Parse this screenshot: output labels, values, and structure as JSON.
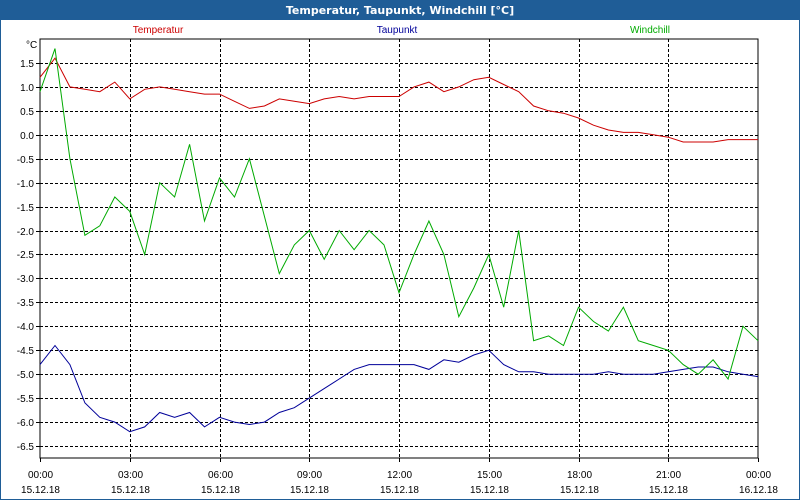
{
  "window": {
    "title": "Temperatur, Taupunkt, Windchill [°C]"
  },
  "chart_data": {
    "type": "line",
    "title": "Temperatur, Taupunkt, Windchill [°C]",
    "ylabel": "°C",
    "xlabel": "",
    "ylim": [
      -6.75,
      2.0
    ],
    "xlim": [
      0,
      24
    ],
    "grid": true,
    "legend": "top",
    "y_ticks": [
      "1.5",
      "1.0",
      "0.5",
      "0.0",
      "-0.5",
      "-1.0",
      "-1.5",
      "-2.0",
      "-2.5",
      "-3.0",
      "-3.5",
      "-4.0",
      "-4.5",
      "-5.0",
      "-5.5",
      "-6.0",
      "-6.5"
    ],
    "x_ticks": [
      {
        "time": "00:00",
        "date": "15.12.18"
      },
      {
        "time": "03:00",
        "date": "15.12.18"
      },
      {
        "time": "06:00",
        "date": "15.12.18"
      },
      {
        "time": "09:00",
        "date": "15.12.18"
      },
      {
        "time": "12:00",
        "date": "15.12.18"
      },
      {
        "time": "15:00",
        "date": "15.12.18"
      },
      {
        "time": "18:00",
        "date": "15.12.18"
      },
      {
        "time": "21:00",
        "date": "15.12.18"
      },
      {
        "time": "00:00",
        "date": "16.12.18"
      }
    ],
    "x": [
      0,
      0.5,
      1,
      1.5,
      2,
      2.5,
      3,
      3.5,
      4,
      4.5,
      5,
      5.5,
      6,
      6.5,
      7,
      7.5,
      8,
      8.5,
      9,
      9.5,
      10,
      10.5,
      11,
      11.5,
      12,
      12.5,
      13,
      13.5,
      14,
      14.5,
      15,
      15.5,
      16,
      16.5,
      17,
      17.5,
      18,
      18.5,
      19,
      19.5,
      20,
      20.5,
      21,
      21.5,
      22,
      22.5,
      23,
      23.5,
      24
    ],
    "series": [
      {
        "name": "Temperatur",
        "color": "#cc0000",
        "values": [
          1.2,
          1.6,
          1.0,
          0.95,
          0.9,
          1.1,
          0.75,
          0.95,
          1.0,
          0.95,
          0.9,
          0.85,
          0.85,
          0.7,
          0.55,
          0.6,
          0.75,
          0.7,
          0.65,
          0.75,
          0.8,
          0.75,
          0.8,
          0.8,
          0.8,
          1.0,
          1.1,
          0.9,
          1.0,
          1.15,
          1.2,
          1.05,
          0.9,
          0.6,
          0.5,
          0.45,
          0.35,
          0.2,
          0.1,
          0.05,
          0.05,
          0.0,
          -0.05,
          -0.15,
          -0.15,
          -0.15,
          -0.1,
          -0.1,
          -0.1
        ]
      },
      {
        "name": "Taupunkt",
        "color": "#000099",
        "values": [
          -4.8,
          -4.4,
          -4.8,
          -5.6,
          -5.9,
          -6.0,
          -6.2,
          -6.1,
          -5.8,
          -5.9,
          -5.8,
          -6.1,
          -5.9,
          -6.0,
          -6.05,
          -6.0,
          -5.8,
          -5.7,
          -5.5,
          -5.3,
          -5.1,
          -4.9,
          -4.8,
          -4.8,
          -4.8,
          -4.8,
          -4.9,
          -4.7,
          -4.75,
          -4.6,
          -4.5,
          -4.8,
          -4.95,
          -4.95,
          -5.0,
          -5.0,
          -5.0,
          -5.0,
          -4.95,
          -5.0,
          -5.0,
          -5.0,
          -4.95,
          -4.9,
          -4.85,
          -4.85,
          -4.95,
          -5.0,
          -5.05
        ]
      },
      {
        "name": "Windchill",
        "color": "#00aa00",
        "values": [
          0.9,
          1.8,
          -0.5,
          -2.1,
          -1.9,
          -1.3,
          -1.6,
          -2.5,
          -1.0,
          -1.3,
          -0.2,
          -1.8,
          -0.9,
          -1.3,
          -0.5,
          -1.7,
          -2.9,
          -2.3,
          -2.0,
          -2.6,
          -2.0,
          -2.4,
          -2.0,
          -2.3,
          -3.3,
          -2.5,
          -1.8,
          -2.5,
          -3.8,
          -3.2,
          -2.5,
          -3.6,
          -2.0,
          -4.3,
          -4.2,
          -4.4,
          -3.6,
          -3.9,
          -4.1,
          -3.6,
          -4.3,
          -4.4,
          -4.5,
          -4.8,
          -5.0,
          -4.7,
          -5.1,
          -4.0,
          -4.3
        ]
      }
    ]
  }
}
